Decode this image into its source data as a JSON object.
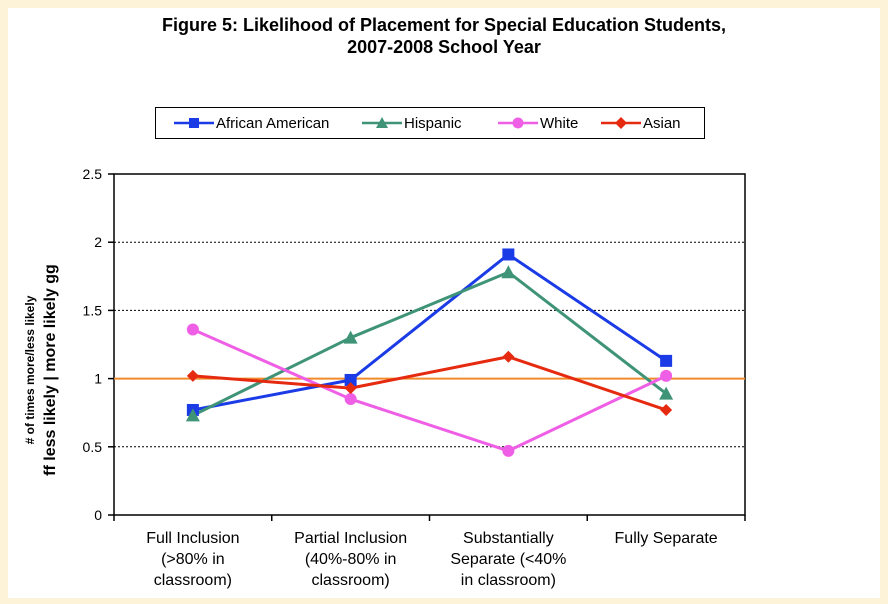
{
  "chart_data": {
    "type": "line",
    "title": "Figure 5: Likelihood of Placement for Special Education Students,\n2007-2008 School Year",
    "ylabel_small": "# of times more/less likely",
    "ylabel_big": "ff less likely | more likely gg",
    "categories": [
      "Full Inclusion\n(>80% in\nclassroom)",
      "Partial Inclusion\n(40%-80% in\nclassroom)",
      "Substantially\nSeparate (<40%\nin classroom)",
      "Fully Separate"
    ],
    "ylim": [
      0,
      2.5
    ],
    "yticks": [
      "0",
      "0.5",
      "1",
      "1.5",
      "2",
      "2.5"
    ],
    "ytick_values": [
      0,
      0.5,
      1,
      1.5,
      2,
      2.5
    ],
    "gridlines": "dashed at 0.5 intervals",
    "reference_line": {
      "value": 1,
      "color": "#f08a2a"
    },
    "legend_position": "top",
    "series": [
      {
        "name": "African American",
        "color": "#1a3be6",
        "marker": "square",
        "values": [
          0.77,
          0.99,
          1.91,
          1.13
        ]
      },
      {
        "name": "Hispanic",
        "color": "#3f9478",
        "marker": "triangle",
        "values": [
          0.73,
          1.3,
          1.78,
          0.89
        ]
      },
      {
        "name": "White",
        "color": "#ef5fe6",
        "marker": "circle",
        "values": [
          1.36,
          0.85,
          0.47,
          1.02
        ]
      },
      {
        "name": "Asian",
        "color": "#e62a10",
        "marker": "diamond",
        "values": [
          1.02,
          0.93,
          1.16,
          0.77
        ]
      }
    ]
  }
}
